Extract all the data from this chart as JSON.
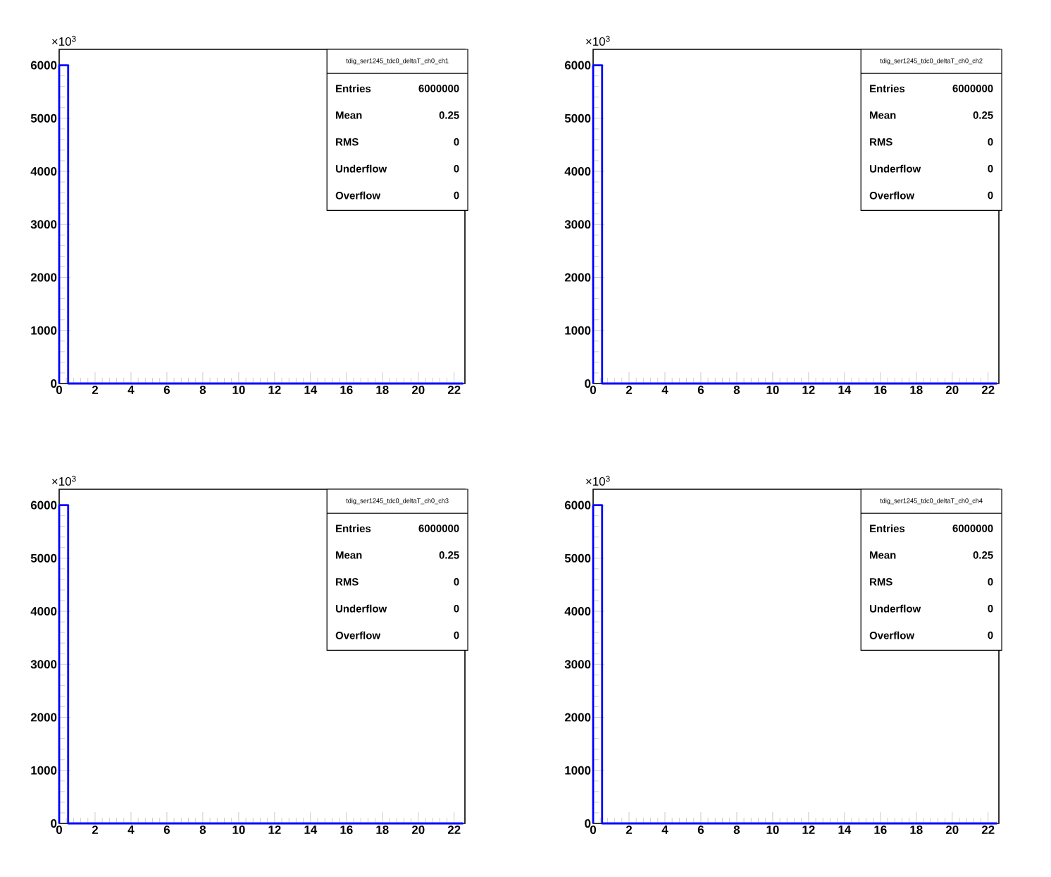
{
  "chart_data": [
    {
      "type": "histogram",
      "title": "tdig_ser1245_tdc0_deltaT_ch0_ch1",
      "color": "#0000ff",
      "bins": [
        0,
        0.5,
        22.5
      ],
      "values": [
        6000,
        0
      ],
      "xlim": [
        0,
        22.6
      ],
      "ylim": [
        0,
        6300
      ],
      "xticks": [
        0,
        2,
        4,
        6,
        8,
        10,
        12,
        14,
        16,
        18,
        20,
        22
      ],
      "yticks": [
        0,
        1000,
        2000,
        3000,
        4000,
        5000,
        6000
      ],
      "annotations": [
        "×10$^{3}$",
        "Entries",
        "6000000",
        "Mean",
        "0.25",
        "RMS",
        "0",
        "Underflow",
        "0",
        "Overflow",
        "0"
      ]
    },
    {
      "type": "histogram",
      "title": "tdig_ser1245_tdc0_deltaT_ch0_ch2",
      "color": "#0000ff",
      "bins": [
        0,
        0.5,
        22.5
      ],
      "values": [
        6000,
        0
      ],
      "xlim": [
        0,
        22.6
      ],
      "ylim": [
        0,
        6300
      ],
      "xticks": [
        0,
        2,
        4,
        6,
        8,
        10,
        12,
        14,
        16,
        18,
        20,
        22
      ],
      "yticks": [
        0,
        1000,
        2000,
        3000,
        4000,
        5000,
        6000
      ],
      "annotations": [
        "×10$^{3}$",
        "Entries",
        "6000000",
        "Mean",
        "0.25",
        "RMS",
        "0",
        "Underflow",
        "0",
        "Overflow",
        "0"
      ]
    },
    {
      "type": "histogram",
      "title": "tdig_ser1245_tdc0_deltaT_ch0_ch3",
      "color": "#0000ff",
      "bins": [
        0,
        0.5,
        22.5
      ],
      "values": [
        6000,
        0
      ],
      "xlim": [
        0,
        22.6
      ],
      "ylim": [
        0,
        6300
      ],
      "xticks": [
        0,
        2,
        4,
        6,
        8,
        10,
        12,
        14,
        16,
        18,
        20,
        22
      ],
      "yticks": [
        0,
        1000,
        2000,
        3000,
        4000,
        5000,
        6000
      ],
      "annotations": [
        "×10$^{3}$",
        "Entries",
        "6000000",
        "Mean",
        "0.25",
        "RMS",
        "0",
        "Underflow",
        "0",
        "Overflow",
        "0"
      ]
    },
    {
      "type": "histogram",
      "title": "tdig_ser1245_tdc0_deltaT_ch0_ch4",
      "color": "#0000ff",
      "bins": [
        0,
        0.5,
        22.5
      ],
      "values": [
        6000,
        0
      ],
      "xlim": [
        0,
        22.6
      ],
      "ylim": [
        0,
        6300
      ],
      "xticks": [
        0,
        2,
        4,
        6,
        8,
        10,
        12,
        14,
        16,
        18,
        20,
        22
      ],
      "yticks": [
        0,
        1000,
        2000,
        3000,
        4000,
        5000,
        6000
      ],
      "annotations": [
        "×10$^{3}$",
        "Entries",
        "6000000",
        "Mean",
        "0.25",
        "RMS",
        "0",
        "Underflow",
        "0",
        "Overflow",
        "0"
      ]
    }
  ]
}
